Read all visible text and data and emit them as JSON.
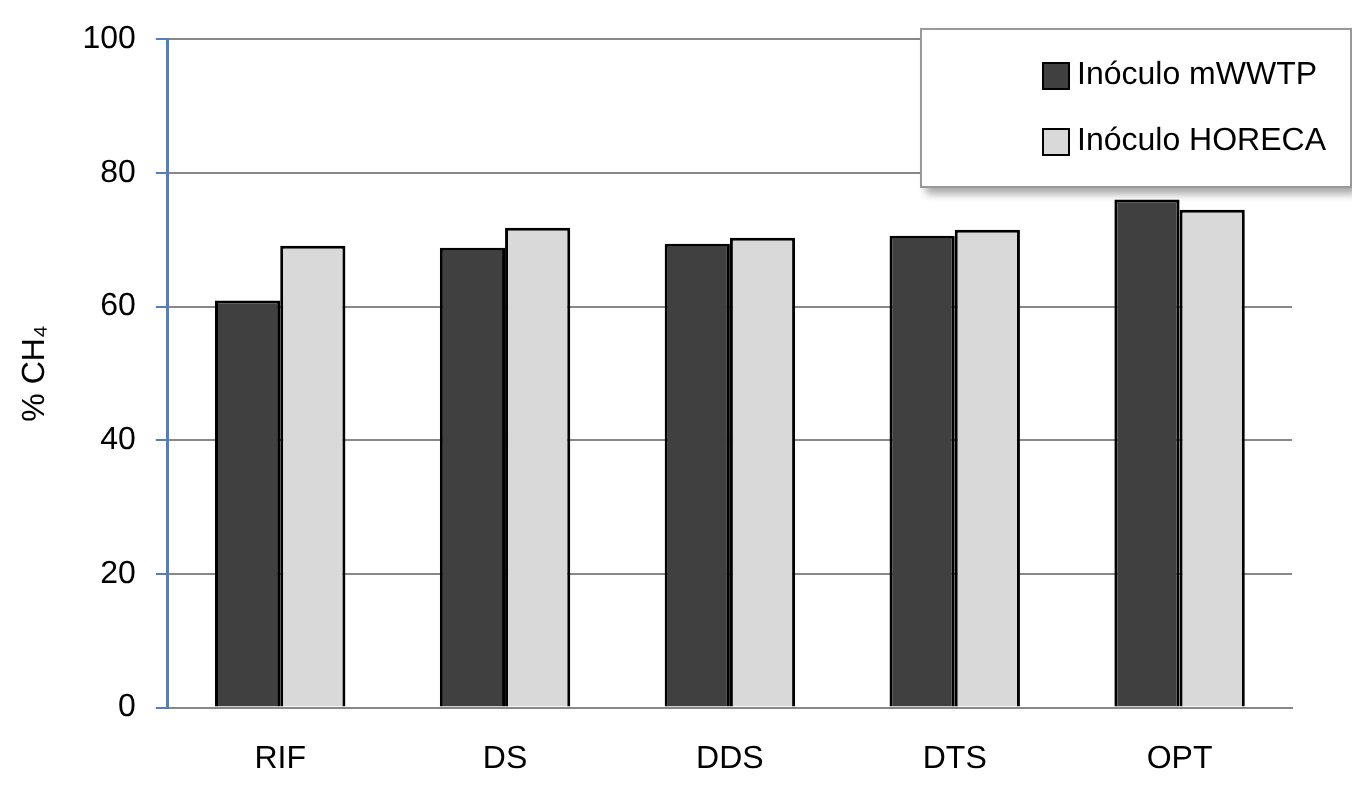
{
  "chart_data": {
    "type": "bar",
    "ylabel": "% CH₄",
    "categories": [
      "RIF",
      "DS",
      "DDS",
      "DTS",
      "OPT"
    ],
    "series": [
      {
        "name": "Inóculo mWWTP",
        "color": "#404040",
        "values": [
          60.9,
          68.8,
          69.4,
          70.6,
          76
        ]
      },
      {
        "name": "Inóculo HORECA",
        "color": "#d9d9d9",
        "values": [
          69.1,
          71.8,
          70.3,
          71.5,
          74.5
        ]
      }
    ],
    "ylim": [
      0,
      100
    ],
    "yticks": [
      0,
      20,
      40,
      60,
      80,
      100
    ],
    "grid": "y",
    "legend": "top right"
  }
}
